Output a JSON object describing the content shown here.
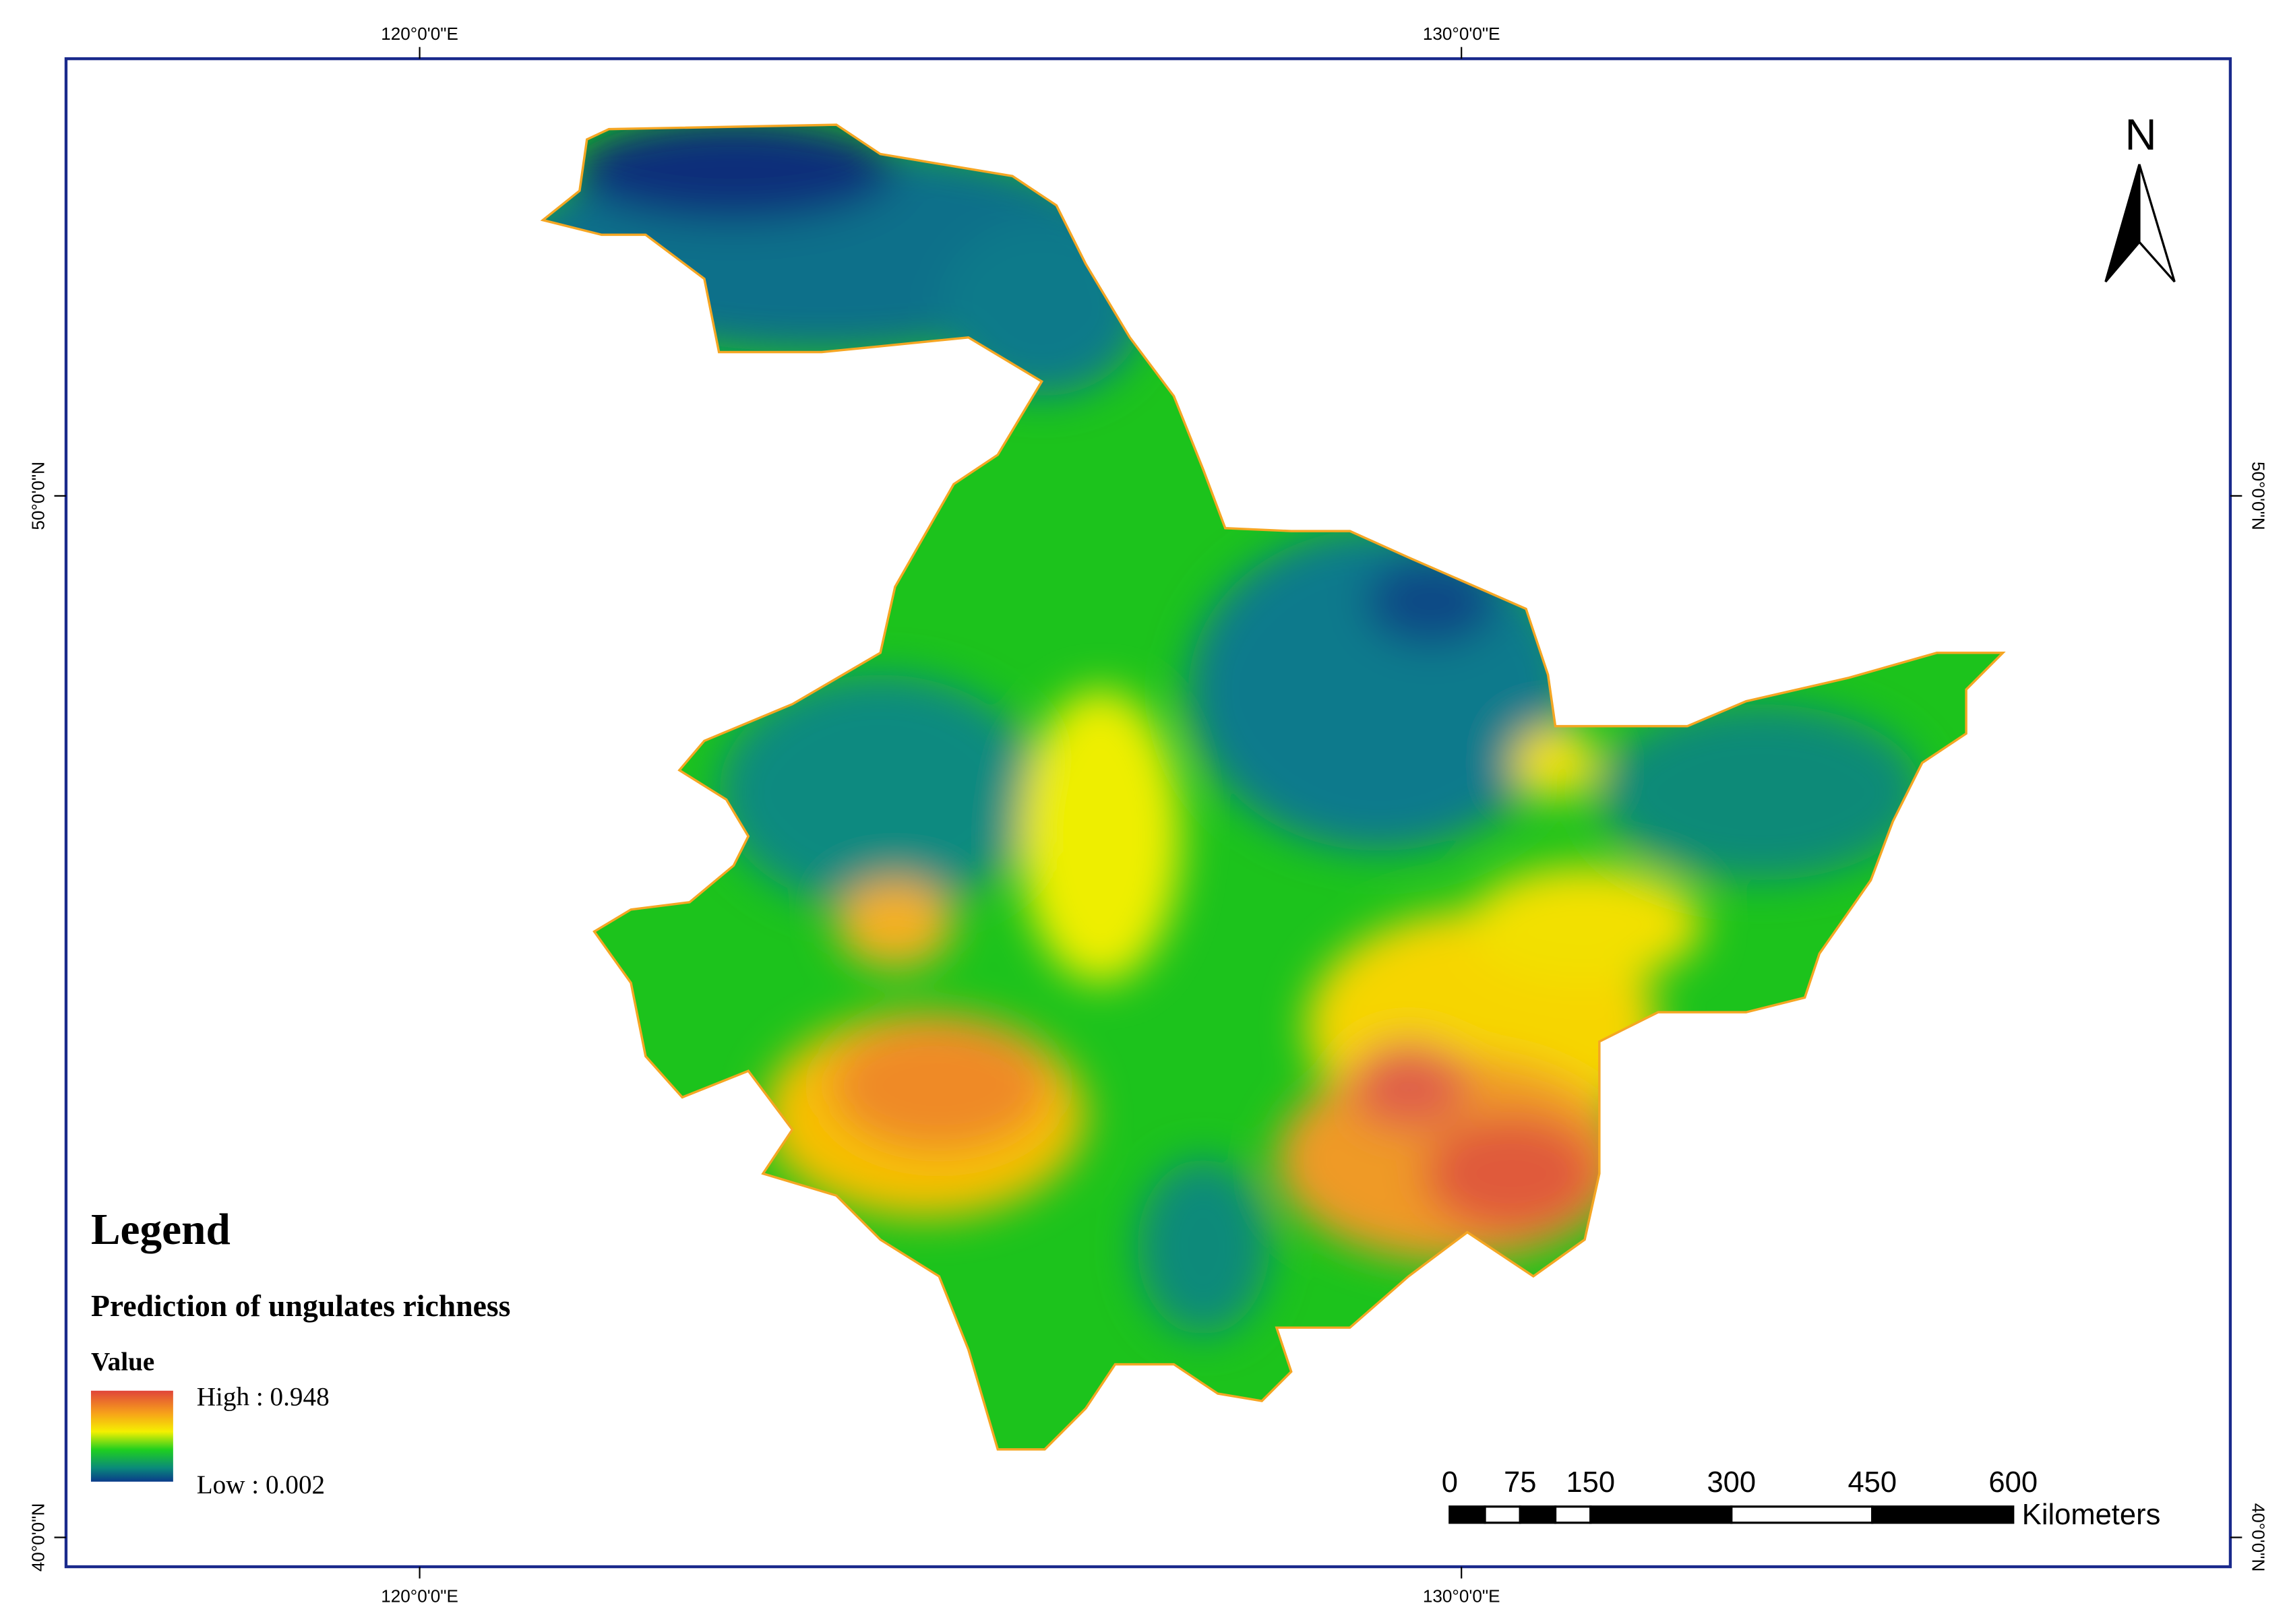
{
  "map": {
    "graticule": {
      "longitude_labels": [
        "120°0'0\"E",
        "130°0'0\"E"
      ],
      "latitude_labels": [
        "50°0'0\"N",
        "40°0'0\"N"
      ]
    },
    "north_arrow": "N",
    "legend": {
      "title": "Legend",
      "layer": "Prediction of ungulates richness",
      "field": "Value",
      "high": "High : 0.948",
      "low": "Low : 0.002"
    },
    "scale_bar": {
      "ticks": [
        0,
        75,
        150,
        300,
        450,
        600
      ],
      "unit": "Kilometers"
    }
  }
}
